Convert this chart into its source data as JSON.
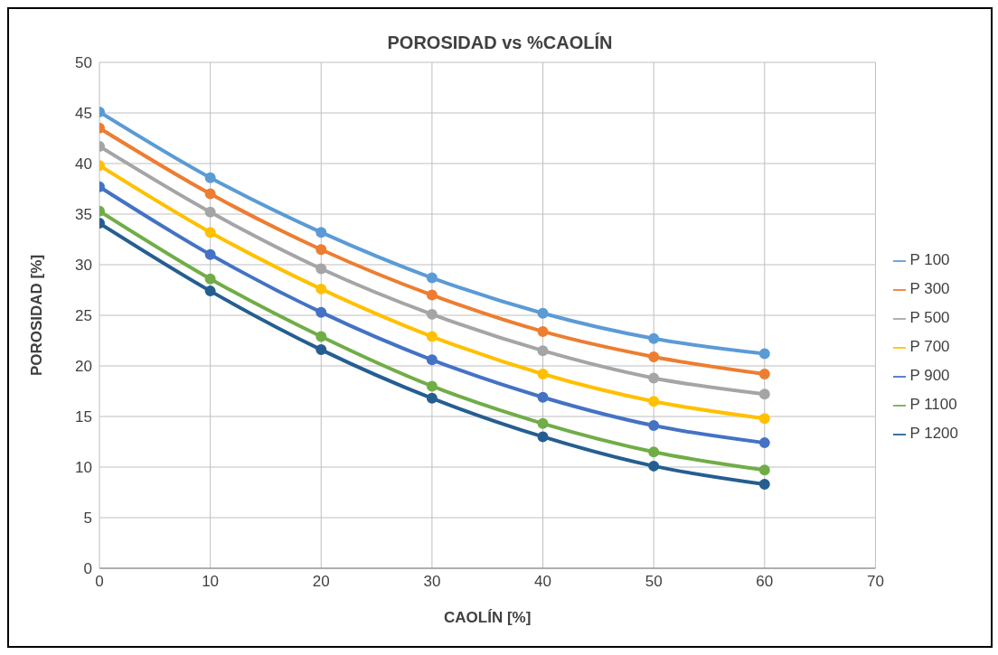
{
  "chart_data": {
    "type": "line",
    "title": "POROSIDAD vs %CAOLÍN",
    "xlabel": "CAOLÍN [%]",
    "ylabel": "POROSIDAD [%]",
    "x": [
      0,
      10,
      20,
      30,
      40,
      50,
      60
    ],
    "series": [
      {
        "name": "P 100",
        "color": "#5b9bd5",
        "values": [
          45.1,
          38.6,
          33.2,
          28.7,
          25.2,
          22.7,
          21.2
        ]
      },
      {
        "name": "P 300",
        "color": "#ed7d31",
        "values": [
          43.5,
          37.0,
          31.5,
          27.0,
          23.4,
          20.9,
          19.2
        ]
      },
      {
        "name": "P 500",
        "color": "#a5a5a5",
        "values": [
          41.7,
          35.2,
          29.6,
          25.1,
          21.5,
          18.8,
          17.2
        ]
      },
      {
        "name": "P 700",
        "color": "#ffc000",
        "values": [
          39.8,
          33.2,
          27.6,
          22.9,
          19.2,
          16.5,
          14.8
        ]
      },
      {
        "name": "P 900",
        "color": "#4472c4",
        "values": [
          37.7,
          31.0,
          25.3,
          20.6,
          16.9,
          14.1,
          12.4
        ]
      },
      {
        "name": "P 1100",
        "color": "#70ad47",
        "values": [
          35.3,
          28.6,
          22.9,
          18.0,
          14.3,
          11.5,
          9.7
        ]
      },
      {
        "name": "P 1200",
        "color": "#255e91",
        "values": [
          34.1,
          27.4,
          21.6,
          16.8,
          13.0,
          10.1,
          8.3
        ]
      }
    ],
    "xlim": [
      0,
      70
    ],
    "xticks": [
      0,
      10,
      20,
      30,
      40,
      50,
      60,
      70
    ],
    "ylim": [
      0,
      50
    ],
    "yticks": [
      0,
      5,
      10,
      15,
      20,
      25,
      30,
      35,
      40,
      45,
      50
    ],
    "grid": true,
    "legend": "right",
    "marker": "circle",
    "line_style": "solid"
  }
}
